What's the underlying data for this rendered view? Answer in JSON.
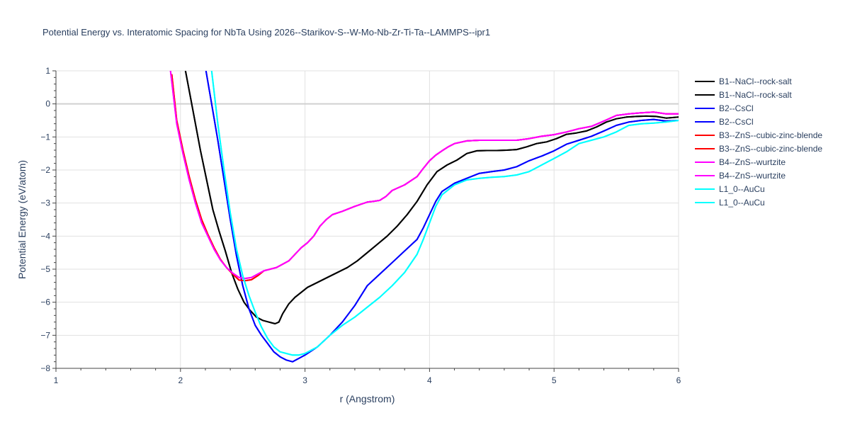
{
  "chart_data": {
    "type": "line",
    "title": "Potential Energy vs. Interatomic Spacing for NbTa Using 2026--Starikov-S--W-Mo-Nb-Zr-Ti-Ta--LAMMPS--ipr1",
    "xlabel": "r (Angstrom)",
    "ylabel": "Potential Energy (eV/atom)",
    "xlim": [
      1,
      6
    ],
    "ylim": [
      -8,
      1
    ],
    "xticks": [
      "1",
      "2",
      "3",
      "4",
      "5",
      "6"
    ],
    "yticks": [
      "1",
      "0",
      "−1",
      "−2",
      "−3",
      "−4",
      "−5",
      "−6",
      "−7",
      "−8"
    ],
    "grid": true,
    "legend_position": "top-right",
    "series": [
      {
        "name": "B1--NaCl--rock-salt",
        "color": "#000000",
        "x": [
          2.03,
          2.08,
          2.12,
          2.16,
          2.21,
          2.26,
          2.31,
          2.36,
          2.41,
          2.46,
          2.51,
          2.56,
          2.61,
          2.66,
          2.71,
          2.76,
          2.79,
          2.82,
          2.87,
          2.92,
          2.97,
          3.02,
          3.1,
          3.18,
          3.26,
          3.34,
          3.42,
          3.5,
          3.58,
          3.66,
          3.74,
          3.82,
          3.9,
          3.98,
          4.06,
          4.14,
          4.22,
          4.3,
          4.38,
          4.46,
          4.54,
          4.62,
          4.7,
          4.78,
          4.86,
          4.94,
          5.02,
          5.1,
          5.18,
          5.26,
          5.34,
          5.42,
          5.5,
          5.58,
          5.66,
          5.74,
          5.82,
          5.9,
          6.0
        ],
        "y": [
          1.2,
          0.2,
          -0.6,
          -1.4,
          -2.3,
          -3.2,
          -3.85,
          -4.45,
          -5.1,
          -5.6,
          -6.0,
          -6.25,
          -6.45,
          -6.55,
          -6.6,
          -6.65,
          -6.6,
          -6.35,
          -6.05,
          -5.85,
          -5.7,
          -5.55,
          -5.4,
          -5.25,
          -5.1,
          -4.95,
          -4.75,
          -4.5,
          -4.25,
          -4.0,
          -3.7,
          -3.35,
          -2.95,
          -2.45,
          -2.05,
          -1.85,
          -1.7,
          -1.5,
          -1.42,
          -1.41,
          -1.41,
          -1.4,
          -1.38,
          -1.3,
          -1.2,
          -1.15,
          -1.05,
          -0.92,
          -0.88,
          -0.82,
          -0.7,
          -0.55,
          -0.45,
          -0.4,
          -0.38,
          -0.37,
          -0.38,
          -0.43,
          -0.4
        ]
      },
      {
        "name": "B1--NaCl--rock-salt",
        "color": "#000000",
        "x": [
          2.03,
          2.08,
          2.12,
          2.16,
          2.21,
          2.26,
          2.31,
          2.36,
          2.41,
          2.46,
          2.51,
          2.56,
          2.61,
          2.66,
          2.71,
          2.76,
          2.79,
          2.82,
          2.87,
          2.92,
          2.97,
          3.02,
          3.1,
          3.18,
          3.26,
          3.34,
          3.42,
          3.5,
          3.58,
          3.66,
          3.74,
          3.82,
          3.9,
          3.98,
          4.06,
          4.14,
          4.22,
          4.3,
          4.38,
          4.46,
          4.54,
          4.62,
          4.7,
          4.78,
          4.86,
          4.94,
          5.02,
          5.1,
          5.18,
          5.26,
          5.34,
          5.42,
          5.5,
          5.58,
          5.66,
          5.74,
          5.82,
          5.9,
          6.0
        ],
        "y": [
          1.2,
          0.2,
          -0.6,
          -1.4,
          -2.3,
          -3.2,
          -3.85,
          -4.45,
          -5.1,
          -5.6,
          -6.0,
          -6.25,
          -6.45,
          -6.55,
          -6.6,
          -6.65,
          -6.6,
          -6.35,
          -6.05,
          -5.85,
          -5.7,
          -5.55,
          -5.4,
          -5.25,
          -5.1,
          -4.95,
          -4.75,
          -4.5,
          -4.25,
          -4.0,
          -3.7,
          -3.35,
          -2.95,
          -2.45,
          -2.05,
          -1.85,
          -1.7,
          -1.5,
          -1.42,
          -1.41,
          -1.41,
          -1.4,
          -1.38,
          -1.3,
          -1.2,
          -1.15,
          -1.05,
          -0.92,
          -0.88,
          -0.82,
          -0.7,
          -0.55,
          -0.45,
          -0.4,
          -0.38,
          -0.37,
          -0.38,
          -0.43,
          -0.4
        ]
      },
      {
        "name": "B2--CsCl",
        "color": "#0000ff",
        "x": [
          2.2,
          2.25,
          2.3,
          2.35,
          2.4,
          2.45,
          2.5,
          2.55,
          2.6,
          2.65,
          2.7,
          2.75,
          2.8,
          2.85,
          2.9,
          2.95,
          3.0,
          3.1,
          3.2,
          3.3,
          3.4,
          3.5,
          3.6,
          3.7,
          3.8,
          3.9,
          3.95,
          4.0,
          4.05,
          4.1,
          4.2,
          4.3,
          4.4,
          4.5,
          4.6,
          4.7,
          4.8,
          4.9,
          5.0,
          5.1,
          5.2,
          5.3,
          5.4,
          5.5,
          5.6,
          5.7,
          5.8,
          5.9,
          6.0
        ],
        "y": [
          1.1,
          0.0,
          -1.1,
          -2.3,
          -3.5,
          -4.6,
          -5.5,
          -6.2,
          -6.7,
          -7.0,
          -7.25,
          -7.5,
          -7.65,
          -7.75,
          -7.8,
          -7.7,
          -7.6,
          -7.35,
          -7.0,
          -6.6,
          -6.1,
          -5.5,
          -5.15,
          -4.8,
          -4.45,
          -4.1,
          -3.75,
          -3.35,
          -2.95,
          -2.65,
          -2.4,
          -2.25,
          -2.1,
          -2.05,
          -2.0,
          -1.9,
          -1.72,
          -1.58,
          -1.42,
          -1.22,
          -1.1,
          -0.98,
          -0.82,
          -0.65,
          -0.55,
          -0.5,
          -0.47,
          -0.52,
          -0.5
        ]
      },
      {
        "name": "B2--CsCl",
        "color": "#0000ff",
        "x": [
          2.2,
          2.25,
          2.3,
          2.35,
          2.4,
          2.45,
          2.5,
          2.55,
          2.6,
          2.65,
          2.7,
          2.75,
          2.8,
          2.85,
          2.9,
          2.95,
          3.0,
          3.1,
          3.2,
          3.3,
          3.4,
          3.5,
          3.6,
          3.7,
          3.8,
          3.9,
          3.95,
          4.0,
          4.05,
          4.1,
          4.2,
          4.3,
          4.4,
          4.5,
          4.6,
          4.7,
          4.8,
          4.9,
          5.0,
          5.1,
          5.2,
          5.3,
          5.4,
          5.5,
          5.6,
          5.7,
          5.8,
          5.9,
          6.0
        ],
        "y": [
          1.1,
          0.0,
          -1.1,
          -2.3,
          -3.5,
          -4.6,
          -5.5,
          -6.2,
          -6.7,
          -7.0,
          -7.25,
          -7.5,
          -7.65,
          -7.75,
          -7.8,
          -7.7,
          -7.6,
          -7.35,
          -7.0,
          -6.6,
          -6.1,
          -5.5,
          -5.15,
          -4.8,
          -4.45,
          -4.1,
          -3.75,
          -3.35,
          -2.95,
          -2.65,
          -2.4,
          -2.25,
          -2.1,
          -2.05,
          -2.0,
          -1.9,
          -1.72,
          -1.58,
          -1.42,
          -1.22,
          -1.1,
          -0.98,
          -0.82,
          -0.65,
          -0.55,
          -0.5,
          -0.47,
          -0.52,
          -0.5
        ]
      },
      {
        "name": "B3--ZnS--cubic-zinc-blende",
        "color": "#ff0000",
        "x": [
          1.93,
          1.97,
          2.02,
          2.07,
          2.12,
          2.17,
          2.22,
          2.27,
          2.32,
          2.37,
          2.42,
          2.47,
          2.52,
          2.57,
          2.62,
          2.67,
          2.72,
          2.77,
          2.82,
          2.87,
          2.92,
          2.97,
          3.02,
          3.07,
          3.12,
          3.17,
          3.22,
          3.3,
          3.4,
          3.5,
          3.55,
          3.6,
          3.65,
          3.7,
          3.8,
          3.9,
          3.95,
          4.0,
          4.05,
          4.1,
          4.15,
          4.2,
          4.3,
          4.4,
          4.5,
          4.6,
          4.7,
          4.8,
          4.9,
          5.0,
          5.1,
          5.2,
          5.3,
          5.4,
          5.5,
          5.6,
          5.7,
          5.8,
          5.9,
          6.0
        ],
        "y": [
          0.9,
          -0.5,
          -1.4,
          -2.2,
          -2.9,
          -3.5,
          -3.95,
          -4.35,
          -4.7,
          -4.95,
          -5.15,
          -5.33,
          -5.35,
          -5.32,
          -5.2,
          -5.05,
          -5.0,
          -4.95,
          -4.85,
          -4.75,
          -4.55,
          -4.35,
          -4.2,
          -4.0,
          -3.7,
          -3.5,
          -3.35,
          -3.25,
          -3.1,
          -2.97,
          -2.95,
          -2.92,
          -2.8,
          -2.62,
          -2.45,
          -2.2,
          -1.95,
          -1.72,
          -1.55,
          -1.42,
          -1.3,
          -1.2,
          -1.12,
          -1.1,
          -1.1,
          -1.1,
          -1.1,
          -1.05,
          -0.98,
          -0.93,
          -0.85,
          -0.75,
          -0.68,
          -0.52,
          -0.35,
          -0.3,
          -0.27,
          -0.25,
          -0.3,
          -0.3
        ]
      },
      {
        "name": "B3--ZnS--cubic-zinc-blende",
        "color": "#ff0000",
        "x": [
          1.93,
          1.97,
          2.02,
          2.07,
          2.12,
          2.17,
          2.22,
          2.27,
          2.32,
          2.37,
          2.42,
          2.47,
          2.52,
          2.57,
          2.62,
          2.67,
          2.72,
          2.77,
          2.82,
          2.87,
          2.92,
          2.97,
          3.02,
          3.07,
          3.12,
          3.17,
          3.22,
          3.3,
          3.4,
          3.5,
          3.55,
          3.6,
          3.65,
          3.7,
          3.8,
          3.9,
          3.95,
          4.0,
          4.05,
          4.1,
          4.15,
          4.2,
          4.3,
          4.4,
          4.5,
          4.6,
          4.7,
          4.8,
          4.9,
          5.0,
          5.1,
          5.2,
          5.3,
          5.4,
          5.5,
          5.6,
          5.7,
          5.8,
          5.9,
          6.0
        ],
        "y": [
          0.9,
          -0.5,
          -1.4,
          -2.2,
          -2.9,
          -3.5,
          -3.95,
          -4.35,
          -4.7,
          -4.95,
          -5.15,
          -5.33,
          -5.35,
          -5.32,
          -5.2,
          -5.05,
          -5.0,
          -4.95,
          -4.85,
          -4.75,
          -4.55,
          -4.35,
          -4.2,
          -4.0,
          -3.7,
          -3.5,
          -3.35,
          -3.25,
          -3.1,
          -2.97,
          -2.95,
          -2.92,
          -2.8,
          -2.62,
          -2.45,
          -2.2,
          -1.95,
          -1.72,
          -1.55,
          -1.42,
          -1.3,
          -1.2,
          -1.12,
          -1.1,
          -1.1,
          -1.1,
          -1.1,
          -1.05,
          -0.98,
          -0.93,
          -0.85,
          -0.75,
          -0.68,
          -0.52,
          -0.35,
          -0.3,
          -0.27,
          -0.25,
          -0.3,
          -0.3
        ]
      },
      {
        "name": "B4--ZnS--wurtzite",
        "color": "#ff00ff",
        "x": [
          1.92,
          1.97,
          2.02,
          2.07,
          2.12,
          2.17,
          2.22,
          2.27,
          2.32,
          2.37,
          2.42,
          2.47,
          2.52,
          2.57,
          2.62,
          2.67,
          2.72,
          2.77,
          2.82,
          2.87,
          2.92,
          2.97,
          3.02,
          3.07,
          3.12,
          3.17,
          3.22,
          3.3,
          3.4,
          3.5,
          3.55,
          3.6,
          3.65,
          3.7,
          3.8,
          3.9,
          3.95,
          4.0,
          4.05,
          4.1,
          4.15,
          4.2,
          4.3,
          4.4,
          4.5,
          4.6,
          4.7,
          4.8,
          4.9,
          5.0,
          5.1,
          5.2,
          5.3,
          5.4,
          5.5,
          5.6,
          5.7,
          5.8,
          5.9,
          6.0
        ],
        "y": [
          1.0,
          -0.6,
          -1.5,
          -2.3,
          -3.0,
          -3.6,
          -4.0,
          -4.4,
          -4.72,
          -4.95,
          -5.12,
          -5.25,
          -5.28,
          -5.25,
          -5.15,
          -5.05,
          -5.0,
          -4.95,
          -4.85,
          -4.75,
          -4.55,
          -4.35,
          -4.2,
          -4.0,
          -3.7,
          -3.5,
          -3.35,
          -3.25,
          -3.1,
          -2.97,
          -2.95,
          -2.92,
          -2.8,
          -2.62,
          -2.45,
          -2.2,
          -1.95,
          -1.72,
          -1.55,
          -1.42,
          -1.3,
          -1.2,
          -1.12,
          -1.1,
          -1.1,
          -1.1,
          -1.1,
          -1.05,
          -0.98,
          -0.93,
          -0.85,
          -0.75,
          -0.68,
          -0.52,
          -0.35,
          -0.3,
          -0.27,
          -0.25,
          -0.3,
          -0.3
        ]
      },
      {
        "name": "B4--ZnS--wurtzite",
        "color": "#ff00ff",
        "x": [
          1.92,
          1.97,
          2.02,
          2.07,
          2.12,
          2.17,
          2.22,
          2.27,
          2.32,
          2.37,
          2.42,
          2.47,
          2.52,
          2.57,
          2.62,
          2.67,
          2.72,
          2.77,
          2.82,
          2.87,
          2.92,
          2.97,
          3.02,
          3.07,
          3.12,
          3.17,
          3.22,
          3.3,
          3.4,
          3.5,
          3.55,
          3.6,
          3.65,
          3.7,
          3.8,
          3.9,
          3.95,
          4.0,
          4.05,
          4.1,
          4.15,
          4.2,
          4.3,
          4.4,
          4.5,
          4.6,
          4.7,
          4.8,
          4.9,
          5.0,
          5.1,
          5.2,
          5.3,
          5.4,
          5.5,
          5.6,
          5.7,
          5.8,
          5.9,
          6.0
        ],
        "y": [
          1.0,
          -0.6,
          -1.5,
          -2.3,
          -3.0,
          -3.6,
          -4.0,
          -4.4,
          -4.72,
          -4.95,
          -5.12,
          -5.25,
          -5.28,
          -5.25,
          -5.15,
          -5.05,
          -5.0,
          -4.95,
          -4.85,
          -4.75,
          -4.55,
          -4.35,
          -4.2,
          -4.0,
          -3.7,
          -3.5,
          -3.35,
          -3.25,
          -3.1,
          -2.97,
          -2.95,
          -2.92,
          -2.8,
          -2.62,
          -2.45,
          -2.2,
          -1.95,
          -1.72,
          -1.55,
          -1.42,
          -1.3,
          -1.2,
          -1.12,
          -1.1,
          -1.1,
          -1.1,
          -1.1,
          -1.05,
          -0.98,
          -0.93,
          -0.85,
          -0.75,
          -0.68,
          -0.52,
          -0.35,
          -0.3,
          -0.27,
          -0.25,
          -0.3,
          -0.3
        ]
      },
      {
        "name": "L1_0--AuCu",
        "color": "#00ffff",
        "x": [
          2.25,
          2.3,
          2.35,
          2.4,
          2.45,
          2.5,
          2.55,
          2.6,
          2.65,
          2.7,
          2.75,
          2.8,
          2.85,
          2.9,
          2.95,
          3.0,
          3.1,
          3.2,
          3.3,
          3.4,
          3.5,
          3.6,
          3.7,
          3.8,
          3.9,
          3.95,
          4.0,
          4.05,
          4.1,
          4.2,
          4.3,
          4.4,
          4.5,
          4.6,
          4.7,
          4.8,
          4.9,
          5.0,
          5.1,
          5.2,
          5.3,
          5.4,
          5.5,
          5.6,
          5.7,
          5.8,
          5.9,
          6.0
        ],
        "y": [
          1.0,
          -0.6,
          -2.0,
          -3.3,
          -4.4,
          -5.2,
          -5.8,
          -6.3,
          -6.75,
          -7.1,
          -7.35,
          -7.5,
          -7.55,
          -7.6,
          -7.6,
          -7.55,
          -7.35,
          -7.0,
          -6.7,
          -6.45,
          -6.15,
          -5.85,
          -5.5,
          -5.1,
          -4.55,
          -4.1,
          -3.6,
          -3.1,
          -2.75,
          -2.45,
          -2.3,
          -2.25,
          -2.22,
          -2.2,
          -2.15,
          -2.05,
          -1.85,
          -1.65,
          -1.45,
          -1.2,
          -1.1,
          -1.0,
          -0.85,
          -0.65,
          -0.6,
          -0.58,
          -0.55,
          -0.5
        ]
      },
      {
        "name": "L1_0--AuCu",
        "color": "#00ffff",
        "x": [
          2.25,
          2.3,
          2.35,
          2.4,
          2.45,
          2.5,
          2.55,
          2.6,
          2.65,
          2.7,
          2.75,
          2.8,
          2.85,
          2.9,
          2.95,
          3.0,
          3.1,
          3.2,
          3.3,
          3.4,
          3.5,
          3.6,
          3.7,
          3.8,
          3.9,
          3.95,
          4.0,
          4.05,
          4.1,
          4.2,
          4.3,
          4.4,
          4.5,
          4.6,
          4.7,
          4.8,
          4.9,
          5.0,
          5.1,
          5.2,
          5.3,
          5.4,
          5.5,
          5.6,
          5.7,
          5.8,
          5.9,
          6.0
        ],
        "y": [
          1.0,
          -0.6,
          -2.0,
          -3.3,
          -4.4,
          -5.2,
          -5.8,
          -6.3,
          -6.75,
          -7.1,
          -7.35,
          -7.5,
          -7.55,
          -7.6,
          -7.6,
          -7.55,
          -7.35,
          -7.0,
          -6.7,
          -6.45,
          -6.15,
          -5.85,
          -5.5,
          -5.1,
          -4.55,
          -4.1,
          -3.6,
          -3.1,
          -2.75,
          -2.45,
          -2.3,
          -2.25,
          -2.22,
          -2.2,
          -2.15,
          -2.05,
          -1.85,
          -1.65,
          -1.45,
          -1.2,
          -1.1,
          -1.0,
          -0.85,
          -0.65,
          -0.6,
          -0.58,
          -0.55,
          -0.5
        ]
      }
    ]
  }
}
